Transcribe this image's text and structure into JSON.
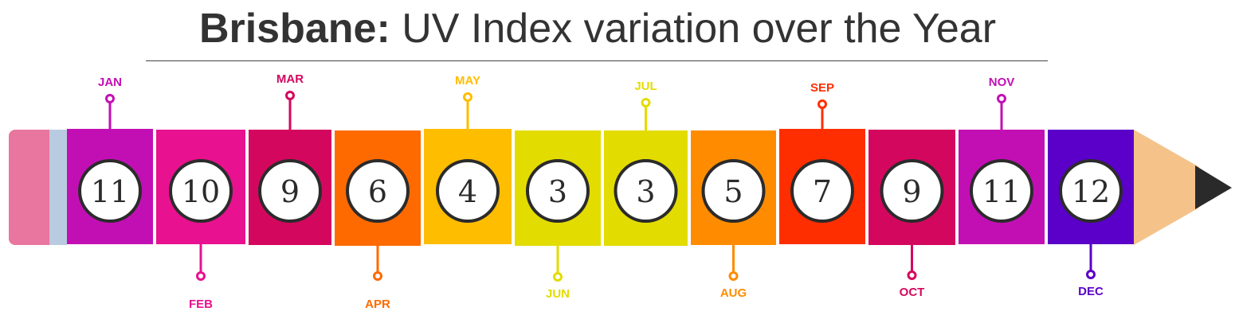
{
  "title": {
    "bold": "Brisbane:",
    "rest": "UV Index variation over the Year"
  },
  "chart_data": {
    "type": "bar",
    "title": "Brisbane: UV Index variation over the Year",
    "categories": [
      "JAN",
      "FEB",
      "MAR",
      "APR",
      "MAY",
      "JUN",
      "JUL",
      "AUG",
      "SEP",
      "OCT",
      "NOV",
      "DEC"
    ],
    "values": [
      11,
      10,
      9,
      6,
      4,
      3,
      3,
      5,
      7,
      9,
      11,
      12
    ],
    "colors": [
      "#c20fb4",
      "#e8118f",
      "#d4075e",
      "#ff6a00",
      "#ffbd00",
      "#e3dc00",
      "#e3dc00",
      "#ff8c00",
      "#ff2e00",
      "#d4075e",
      "#c20fb4",
      "#5a00c8"
    ],
    "label_colors": [
      "#c20fb4",
      "#e8118f",
      "#d4075e",
      "#ff6a00",
      "#ffbd00",
      "#e3dc00",
      "#e3dc00",
      "#ff8c00",
      "#ff2e00",
      "#d4075e",
      "#c20fb4",
      "#5a00c8"
    ]
  }
}
